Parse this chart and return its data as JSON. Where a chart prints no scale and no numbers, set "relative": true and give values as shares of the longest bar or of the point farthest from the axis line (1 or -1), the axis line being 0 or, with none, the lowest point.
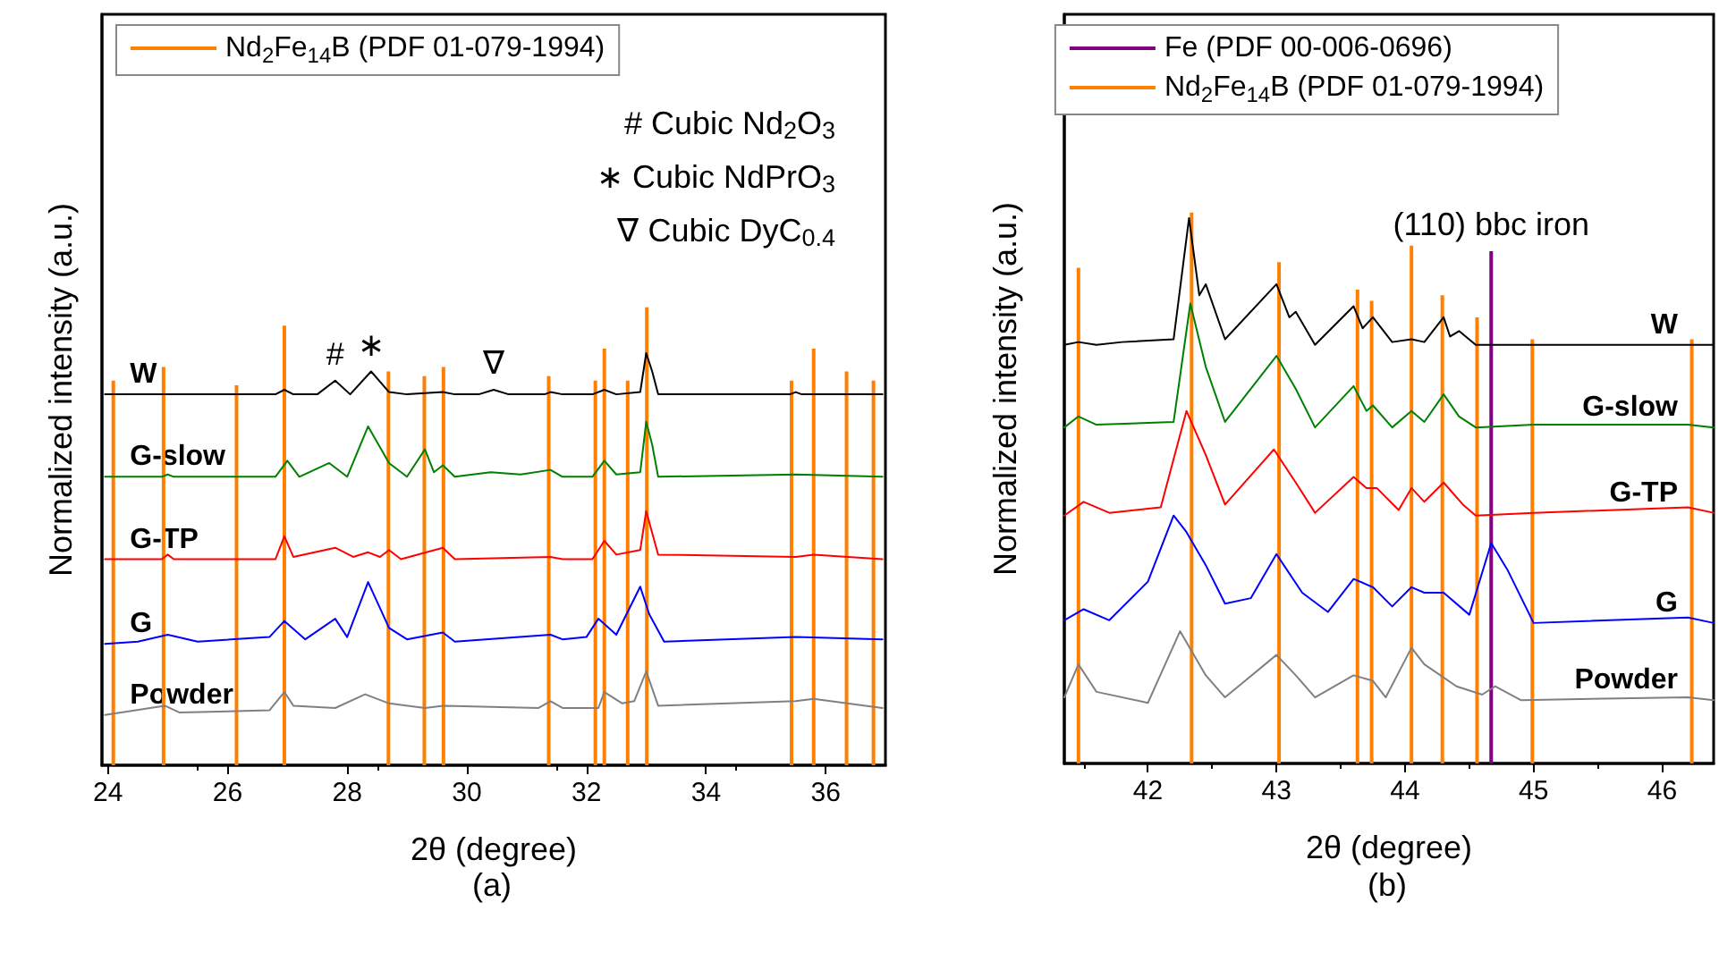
{
  "chart_data": [
    {
      "type": "line",
      "title": "(a)",
      "xlabel": "2θ (degree)",
      "ylabel": "Normalized intensity (a.u.)",
      "relative": true,
      "xlim": [
        23.9,
        37
      ],
      "xticks": [
        24,
        26,
        28,
        30,
        32,
        34,
        36
      ],
      "tick_labels": "x",
      "grid": false,
      "legend": "top left",
      "marker": "none",
      "line_style": "solid",
      "annotations": [
        "# Cubic Nd$_{2}$O$_{3}$",
        "∗ Cubic NdPrO$_{3}$",
        "∇ Cubic DyC$_{0.4}$",
        {
          "text": "#",
          "x": 27.8,
          "y": 0.84
        },
        {
          "text": "∗",
          "x": 28.4,
          "y": 0.86
        },
        {
          "text": "∇",
          "x": 30.45,
          "y": 0.82
        }
      ],
      "series": [
        {
          "name": "Nd$_{2}$Fe$_{14}$B (PDF 01-079-1994)",
          "type": "bar",
          "color": "#ff8000",
          "x": [
            24.09,
            24.93,
            26.15,
            26.95,
            28.69,
            29.29,
            29.61,
            31.37,
            32.15,
            32.3,
            32.69,
            33.01,
            35.43,
            35.8,
            36.35,
            36.8
          ],
          "values": [
            0.84,
            0.87,
            0.83,
            0.96,
            0.86,
            0.85,
            0.87,
            0.85,
            0.84,
            0.91,
            0.84,
            1,
            0.84,
            0.91,
            0.86,
            0.84
          ]
        },
        {
          "name": "W",
          "color": "#000000",
          "x": [
            23.95,
            26.8,
            26.95,
            27.1,
            27.5,
            27.8,
            28.05,
            28.4,
            28.7,
            29.0,
            29.6,
            29.8,
            30.2,
            30.45,
            30.7,
            31.3,
            31.4,
            31.6,
            32.1,
            32.3,
            32.5,
            32.9,
            33.0,
            33.1,
            33.2,
            35.4,
            35.5,
            35.6,
            36.95
          ],
          "values": [
            0.81,
            0.81,
            0.82,
            0.81,
            0.81,
            0.84,
            0.81,
            0.86,
            0.815,
            0.81,
            0.815,
            0.81,
            0.81,
            0.82,
            0.81,
            0.81,
            0.815,
            0.81,
            0.81,
            0.82,
            0.81,
            0.815,
            0.9,
            0.86,
            0.81,
            0.81,
            0.815,
            0.81,
            0.81
          ]
        },
        {
          "name": "G-slow",
          "color": "#008000",
          "x": [
            23.95,
            24.9,
            25.0,
            25.1,
            26.8,
            27.0,
            27.2,
            27.7,
            28.0,
            28.35,
            28.7,
            29.0,
            29.3,
            29.45,
            29.6,
            29.8,
            30.4,
            30.9,
            31.4,
            31.6,
            32.1,
            32.3,
            32.5,
            32.9,
            33.0,
            33.1,
            33.2,
            35.5,
            36.95
          ],
          "values": [
            0.63,
            0.63,
            0.635,
            0.63,
            0.63,
            0.665,
            0.63,
            0.66,
            0.63,
            0.74,
            0.66,
            0.63,
            0.69,
            0.64,
            0.655,
            0.63,
            0.64,
            0.635,
            0.645,
            0.63,
            0.63,
            0.665,
            0.635,
            0.64,
            0.75,
            0.7,
            0.63,
            0.635,
            0.63
          ]
        },
        {
          "name": "G-TP",
          "color": "#ff0000",
          "x": [
            23.95,
            24.9,
            25.0,
            25.1,
            26.8,
            26.95,
            27.1,
            27.8,
            28.1,
            28.35,
            28.55,
            28.7,
            28.9,
            29.6,
            29.8,
            31.4,
            31.6,
            32.1,
            32.3,
            32.5,
            32.9,
            33.0,
            33.2,
            35.5,
            35.8,
            36.95
          ],
          "values": [
            0.45,
            0.45,
            0.46,
            0.45,
            0.45,
            0.5,
            0.455,
            0.475,
            0.455,
            0.465,
            0.455,
            0.47,
            0.45,
            0.475,
            0.45,
            0.455,
            0.45,
            0.45,
            0.49,
            0.46,
            0.47,
            0.555,
            0.46,
            0.455,
            0.46,
            0.45
          ]
        },
        {
          "name": "G",
          "color": "#0000ff",
          "x": [
            23.95,
            24.5,
            25.0,
            25.5,
            26.7,
            26.95,
            27.3,
            27.8,
            28.0,
            28.35,
            28.7,
            29.0,
            29.6,
            29.8,
            31.4,
            31.6,
            32.0,
            32.2,
            32.5,
            32.9,
            33.05,
            33.3,
            35.5,
            36.95
          ],
          "values": [
            0.265,
            0.27,
            0.285,
            0.27,
            0.28,
            0.315,
            0.275,
            0.32,
            0.28,
            0.4,
            0.3,
            0.275,
            0.29,
            0.27,
            0.285,
            0.275,
            0.28,
            0.32,
            0.285,
            0.39,
            0.33,
            0.27,
            0.28,
            0.275
          ]
        },
        {
          "name": "Powder",
          "color": "#808080",
          "x": [
            23.95,
            24.95,
            25.2,
            26.7,
            26.95,
            27.1,
            27.8,
            28.3,
            28.7,
            29.3,
            29.6,
            31.2,
            31.4,
            31.6,
            32.2,
            32.3,
            32.6,
            32.8,
            33.0,
            33.2,
            35.5,
            35.8,
            36.95
          ],
          "values": [
            0.11,
            0.13,
            0.115,
            0.12,
            0.16,
            0.13,
            0.125,
            0.155,
            0.135,
            0.125,
            0.13,
            0.125,
            0.14,
            0.125,
            0.125,
            0.16,
            0.135,
            0.14,
            0.205,
            0.13,
            0.14,
            0.145,
            0.125
          ]
        }
      ]
    },
    {
      "type": "line",
      "title": "(b)",
      "xlabel": "2θ (degree)",
      "ylabel": "Normalized intensity (a.u.)",
      "relative": true,
      "xlim": [
        41.35,
        46.4
      ],
      "xticks": [
        42,
        43,
        44,
        45,
        46
      ],
      "tick_labels": "x",
      "grid": false,
      "legend": "top",
      "marker": "none",
      "line_style": "solid",
      "annotations": [
        {
          "text": "(110) bbc iron",
          "x": 44.67,
          "y": 0.93
        }
      ],
      "series": [
        {
          "name": "Fe (PDF 00-006-0696)",
          "type": "bar",
          "color": "#800080",
          "x": [
            44.67
          ],
          "values": [
            0.93
          ]
        },
        {
          "name": "Nd$_{2}$Fe$_{14}$B (PDF 01-079-1994)",
          "type": "bar",
          "color": "#ff8000",
          "x": [
            41.46,
            42.34,
            43.02,
            43.63,
            43.74,
            44.05,
            44.29,
            44.56,
            44.99,
            46.23
          ],
          "values": [
            0.9,
            1,
            0.91,
            0.86,
            0.84,
            0.94,
            0.85,
            0.81,
            0.77,
            0.77
          ]
        },
        {
          "name": "W",
          "color": "#000000",
          "x": [
            41.35,
            41.46,
            41.6,
            41.8,
            42.2,
            42.32,
            42.4,
            42.45,
            42.6,
            43.0,
            43.1,
            43.15,
            43.3,
            43.6,
            43.67,
            43.75,
            43.9,
            44.05,
            44.15,
            44.3,
            44.35,
            44.42,
            44.55,
            46.4
          ],
          "values": [
            0.76,
            0.765,
            0.76,
            0.765,
            0.77,
            0.99,
            0.85,
            0.87,
            0.77,
            0.87,
            0.81,
            0.82,
            0.76,
            0.83,
            0.79,
            0.81,
            0.765,
            0.77,
            0.765,
            0.81,
            0.775,
            0.785,
            0.76,
            0.76
          ]
        },
        {
          "name": "G-slow",
          "color": "#008000",
          "x": [
            41.35,
            41.46,
            41.6,
            42.2,
            42.33,
            42.45,
            42.6,
            43.0,
            43.15,
            43.3,
            43.6,
            43.7,
            43.75,
            43.9,
            44.05,
            44.15,
            44.3,
            44.42,
            44.55,
            45.0,
            46.2,
            46.4
          ],
          "values": [
            0.61,
            0.63,
            0.615,
            0.62,
            0.835,
            0.72,
            0.62,
            0.74,
            0.68,
            0.61,
            0.685,
            0.64,
            0.65,
            0.61,
            0.64,
            0.62,
            0.67,
            0.63,
            0.61,
            0.615,
            0.615,
            0.61
          ]
        },
        {
          "name": "G-TP",
          "color": "#ff0000",
          "x": [
            41.35,
            41.5,
            41.7,
            42.1,
            42.3,
            42.45,
            42.6,
            42.98,
            43.15,
            43.3,
            43.6,
            43.7,
            43.78,
            43.95,
            44.05,
            44.15,
            44.3,
            44.45,
            44.55,
            45.0,
            46.2,
            46.4
          ],
          "values": [
            0.45,
            0.475,
            0.455,
            0.465,
            0.64,
            0.56,
            0.47,
            0.57,
            0.51,
            0.455,
            0.52,
            0.5,
            0.5,
            0.46,
            0.5,
            0.475,
            0.51,
            0.47,
            0.45,
            0.455,
            0.465,
            0.455
          ]
        },
        {
          "name": "G",
          "color": "#0000ff",
          "x": [
            41.35,
            41.5,
            41.7,
            42.0,
            42.2,
            42.3,
            42.45,
            42.6,
            42.8,
            43.0,
            43.2,
            43.4,
            43.6,
            43.75,
            43.9,
            44.05,
            44.15,
            44.3,
            44.5,
            44.67,
            44.8,
            45.0,
            46.2,
            46.4
          ],
          "values": [
            0.26,
            0.28,
            0.26,
            0.33,
            0.45,
            0.42,
            0.36,
            0.29,
            0.3,
            0.38,
            0.31,
            0.275,
            0.335,
            0.32,
            0.285,
            0.32,
            0.31,
            0.31,
            0.27,
            0.4,
            0.35,
            0.255,
            0.265,
            0.255
          ]
        },
        {
          "name": "Powder",
          "color": "#808080",
          "x": [
            41.35,
            41.46,
            41.6,
            42.0,
            42.25,
            42.45,
            42.6,
            43.0,
            43.15,
            43.3,
            43.6,
            43.75,
            43.85,
            44.05,
            44.15,
            44.4,
            44.6,
            44.7,
            44.9,
            46.2,
            46.4
          ],
          "values": [
            0.12,
            0.18,
            0.13,
            0.11,
            0.24,
            0.16,
            0.12,
            0.197,
            0.16,
            0.12,
            0.16,
            0.15,
            0.12,
            0.21,
            0.18,
            0.14,
            0.125,
            0.14,
            0.115,
            0.12,
            0.115
          ]
        }
      ]
    }
  ]
}
